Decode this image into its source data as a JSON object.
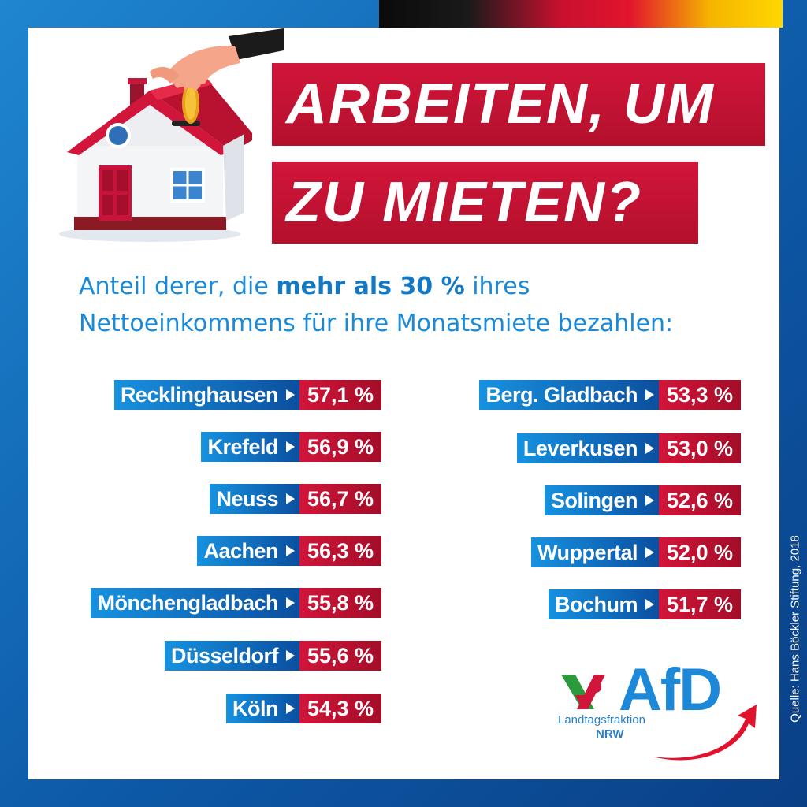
{
  "title": {
    "line1": "ARBEITEN, UM",
    "line2": "ZU MIETEN?"
  },
  "subtitle": {
    "part1": "Anteil derer, die ",
    "bold": "mehr als 30 %",
    "part2": " ihres Nettoeinkommens für ihre Monatsmiete bezahlen:"
  },
  "left_list": [
    {
      "city": "Recklinghausen",
      "value": "57,1 %"
    },
    {
      "city": "Krefeld",
      "value": "56,9 %"
    },
    {
      "city": "Neuss",
      "value": "56,7 %"
    },
    {
      "city": "Aachen",
      "value": "56,3 %"
    },
    {
      "city": "Mönchengladbach",
      "value": "55,8 %"
    },
    {
      "city": "Düsseldorf",
      "value": "55,6 %"
    },
    {
      "city": "Köln",
      "value": "54,3 %"
    }
  ],
  "right_list": [
    {
      "city": "Berg. Gladbach",
      "value": "53,3 %"
    },
    {
      "city": "Leverkusen",
      "value": "53,0 %"
    },
    {
      "city": "Solingen",
      "value": "52,6 %"
    },
    {
      "city": "Wuppertal",
      "value": "52,0 %"
    },
    {
      "city": "Bochum",
      "value": "51,7 %"
    }
  ],
  "source": "Quelle: Hans Böckler Stiftung, 2018",
  "logo": {
    "name": "AfD",
    "line1": "Landtagsfraktion",
    "line2": "NRW"
  },
  "colors": {
    "blue": "#1692e0",
    "dark_blue": "#0b4fa0",
    "red": "#d2153a",
    "text_blue": "#1a8ad8"
  },
  "icons": [
    "house-icon",
    "hand-coin-icon",
    "arrow-right-icon",
    "nrw-emblem-icon",
    "swoosh-arrow-icon"
  ]
}
